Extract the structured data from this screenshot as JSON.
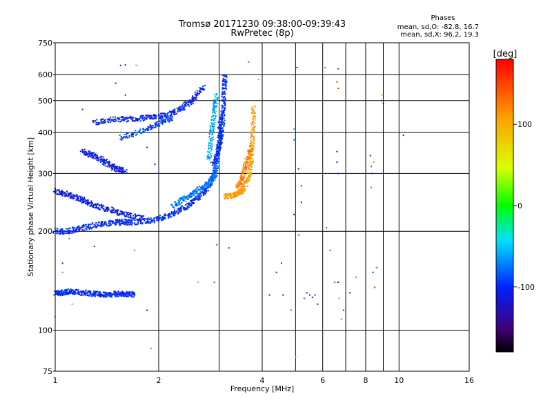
{
  "chart_data": {
    "type": "scatter",
    "title": "Tromsø 20171230 09:38:00-09:39:43",
    "subtitle": "RwPretec (8p)",
    "phase_info": {
      "heading": "Phases",
      "line_o": "mean, sd,O: -82.8, 16.7",
      "line_x": "mean, sd,X:  96.2, 19.3"
    },
    "xlabel": "Frequency [MHz]",
    "ylabel": "Stationary phase Virtual Height [km]",
    "x_scale": "log",
    "y_scale": "log",
    "xlim": [
      1,
      16
    ],
    "ylim": [
      75,
      750
    ],
    "x_ticks": [
      {
        "value": 1,
        "label": "1"
      },
      {
        "value": 2,
        "label": "2"
      },
      {
        "value": 4,
        "label": "4"
      },
      {
        "value": 6,
        "label": "6"
      },
      {
        "value": 8,
        "label": "8"
      },
      {
        "value": 10,
        "label": "10"
      },
      {
        "value": 16,
        "label": "16"
      }
    ],
    "x_grid": [
      2,
      3,
      4,
      5,
      6,
      7,
      8,
      9,
      10
    ],
    "y_ticks": [
      {
        "value": 75,
        "label": "75"
      },
      {
        "value": 100,
        "label": "100"
      },
      {
        "value": 200,
        "label": "200"
      },
      {
        "value": 300,
        "label": "300"
      },
      {
        "value": 400,
        "label": "400"
      },
      {
        "value": 500,
        "label": "500"
      },
      {
        "value": 600,
        "label": "600"
      },
      {
        "value": 750,
        "label": "750"
      }
    ],
    "y_grid": [
      100,
      200,
      300,
      400,
      500,
      600
    ],
    "colorbar": {
      "label": "[deg]",
      "range": [
        -180,
        180
      ],
      "ticks": [
        {
          "value": 100,
          "label": "100"
        },
        {
          "value": 0,
          "label": "0"
        },
        {
          "value": -100,
          "label": "-100"
        }
      ]
    },
    "grid": true,
    "traces": [
      {
        "freqs": [
          1.0,
          1.05,
          1.1,
          1.2,
          1.3,
          1.4,
          1.5,
          1.6,
          1.7
        ],
        "heights": [
          130,
          130,
          131,
          130,
          129,
          128,
          129,
          129,
          128
        ],
        "phase": -100
      },
      {
        "freqs": [
          1.0,
          1.1,
          1.2,
          1.35,
          1.5,
          1.65
        ],
        "heights": [
          200,
          200,
          205,
          210,
          213,
          212
        ],
        "phase": -100
      },
      {
        "freqs": [
          1.5,
          1.7,
          1.9,
          2.1,
          2.3,
          2.5,
          2.7,
          2.85,
          2.95,
          3.0,
          3.03
        ],
        "heights": [
          214,
          213,
          216,
          222,
          232,
          245,
          262,
          282,
          320,
          380,
          450
        ],
        "phase": -100
      },
      {
        "freqs": [
          2.2,
          2.4,
          2.6,
          2.8,
          2.9,
          2.95
        ],
        "heights": [
          240,
          252,
          265,
          280,
          295,
          320
        ],
        "phase": -75
      },
      {
        "freqs": [
          2.9,
          3.0,
          3.05,
          3.08,
          3.1,
          3.12
        ],
        "heights": [
          320,
          360,
          400,
          460,
          530,
          600
        ],
        "phase": -100
      },
      {
        "freqs": [
          2.8,
          2.85,
          2.9,
          2.95
        ],
        "heights": [
          330,
          400,
          460,
          520
        ],
        "phase": -60
      },
      {
        "freqs": [
          3.1,
          3.3,
          3.5,
          3.65,
          3.72,
          3.75,
          3.78
        ],
        "heights": [
          255,
          258,
          265,
          290,
          330,
          390,
          480
        ],
        "phase": 110
      },
      {
        "freqs": [
          3.4,
          3.5,
          3.6,
          3.7
        ],
        "heights": [
          270,
          290,
          320,
          360
        ],
        "phase": 125
      },
      {
        "freqs": [
          1.0,
          1.1,
          1.2,
          1.3,
          1.45,
          1.6,
          1.8
        ],
        "heights": [
          265,
          258,
          250,
          240,
          232,
          225,
          218
        ],
        "phase": -110
      },
      {
        "freqs": [
          1.2,
          1.3,
          1.4,
          1.5,
          1.6
        ],
        "heights": [
          350,
          340,
          325,
          310,
          305
        ],
        "phase": -110
      },
      {
        "freqs": [
          1.3,
          1.5,
          1.7,
          1.9,
          2.1,
          2.3,
          2.5,
          2.7
        ],
        "heights": [
          430,
          438,
          440,
          445,
          450,
          470,
          500,
          550
        ],
        "phase": -105
      },
      {
        "freqs": [
          1.55,
          1.8,
          2.0,
          2.2
        ],
        "heights": [
          385,
          405,
          425,
          445
        ],
        "phase": -90
      }
    ],
    "scatter_points": [
      {
        "f": 1.55,
        "h": 640,
        "p": -110
      },
      {
        "f": 1.6,
        "h": 642,
        "p": -100
      },
      {
        "f": 1.72,
        "h": 640,
        "p": -60
      },
      {
        "f": 1.5,
        "h": 565,
        "p": -110
      },
      {
        "f": 1.6,
        "h": 520,
        "p": -120
      },
      {
        "f": 1.2,
        "h": 470,
        "p": -110
      },
      {
        "f": 1.85,
        "h": 360,
        "p": -110
      },
      {
        "f": 1.95,
        "h": 320,
        "p": -110
      },
      {
        "f": 2.0,
        "h": 300,
        "p": -100
      },
      {
        "f": 1.85,
        "h": 115,
        "p": -120
      },
      {
        "f": 1.9,
        "h": 88,
        "p": 140
      },
      {
        "f": 1.7,
        "h": 175,
        "p": -70
      },
      {
        "f": 1.3,
        "h": 180,
        "p": -110
      },
      {
        "f": 1.1,
        "h": 190,
        "p": -70
      },
      {
        "f": 1.05,
        "h": 160,
        "p": -110
      },
      {
        "f": 2.6,
        "h": 140,
        "p": 120
      },
      {
        "f": 2.9,
        "h": 140,
        "p": 150
      },
      {
        "f": 2.95,
        "h": 182,
        "p": 160
      },
      {
        "f": 3.2,
        "h": 178,
        "p": -110
      },
      {
        "f": 3.55,
        "h": 600,
        "p": 150
      },
      {
        "f": 3.65,
        "h": 655,
        "p": 140
      },
      {
        "f": 3.9,
        "h": 580,
        "p": 120
      },
      {
        "f": 4.2,
        "h": 128,
        "p": -120
      },
      {
        "f": 4.4,
        "h": 150,
        "p": -110
      },
      {
        "f": 4.55,
        "h": 160,
        "p": -110
      },
      {
        "f": 4.6,
        "h": 128,
        "p": -100
      },
      {
        "f": 4.85,
        "h": 115,
        "p": 170
      },
      {
        "f": 4.95,
        "h": 410,
        "p": -60
      },
      {
        "f": 4.95,
        "h": 380,
        "p": -80
      },
      {
        "f": 5.05,
        "h": 630,
        "p": -100
      },
      {
        "f": 5.1,
        "h": 310,
        "p": -110
      },
      {
        "f": 5.2,
        "h": 275,
        "p": -110
      },
      {
        "f": 5.1,
        "h": 195,
        "p": 170
      },
      {
        "f": 5.2,
        "h": 245,
        "p": -100
      },
      {
        "f": 4.95,
        "h": 225,
        "p": -110
      },
      {
        "f": 5.0,
        "h": 83,
        "p": -20
      },
      {
        "f": 5.3,
        "h": 125,
        "p": 160
      },
      {
        "f": 5.4,
        "h": 130,
        "p": -110
      },
      {
        "f": 5.5,
        "h": 128,
        "p": -120
      },
      {
        "f": 5.6,
        "h": 126,
        "p": -110
      },
      {
        "f": 5.7,
        "h": 128,
        "p": -120
      },
      {
        "f": 5.8,
        "h": 120,
        "p": -120
      },
      {
        "f": 6.1,
        "h": 630,
        "p": 150
      },
      {
        "f": 6.15,
        "h": 205,
        "p": -80
      },
      {
        "f": 6.3,
        "h": 175,
        "p": 170
      },
      {
        "f": 6.5,
        "h": 140,
        "p": 150
      },
      {
        "f": 6.65,
        "h": 625,
        "p": -80
      },
      {
        "f": 6.6,
        "h": 570,
        "p": 170
      },
      {
        "f": 6.65,
        "h": 545,
        "p": 150
      },
      {
        "f": 6.6,
        "h": 350,
        "p": -110
      },
      {
        "f": 6.6,
        "h": 325,
        "p": -100
      },
      {
        "f": 6.65,
        "h": 300,
        "p": -100
      },
      {
        "f": 6.65,
        "h": 140,
        "p": -110
      },
      {
        "f": 6.7,
        "h": 125,
        "p": 140
      },
      {
        "f": 6.8,
        "h": 108,
        "p": 150
      },
      {
        "f": 6.9,
        "h": 115,
        "p": -110
      },
      {
        "f": 7.2,
        "h": 130,
        "p": -100
      },
      {
        "f": 7.5,
        "h": 145,
        "p": -60
      },
      {
        "f": 8.25,
        "h": 340,
        "p": -110
      },
      {
        "f": 8.3,
        "h": 315,
        "p": -80
      },
      {
        "f": 8.35,
        "h": 300,
        "p": -110
      },
      {
        "f": 8.45,
        "h": 325,
        "p": 120
      },
      {
        "f": 8.3,
        "h": 272,
        "p": 150
      },
      {
        "f": 8.4,
        "h": 150,
        "p": -100
      },
      {
        "f": 8.5,
        "h": 135,
        "p": 160
      },
      {
        "f": 8.6,
        "h": 155,
        "p": 160
      },
      {
        "f": 8.9,
        "h": 500,
        "p": -120
      },
      {
        "f": 8.95,
        "h": 520,
        "p": 120
      },
      {
        "f": 9.0,
        "h": 490,
        "p": -110
      },
      {
        "f": 10.3,
        "h": 392,
        "p": -100
      },
      {
        "f": 1.0,
        "h": 110,
        "p": -50
      },
      {
        "f": 1.05,
        "h": 150,
        "p": -60
      },
      {
        "f": 1.12,
        "h": 120,
        "p": -40
      }
    ]
  }
}
